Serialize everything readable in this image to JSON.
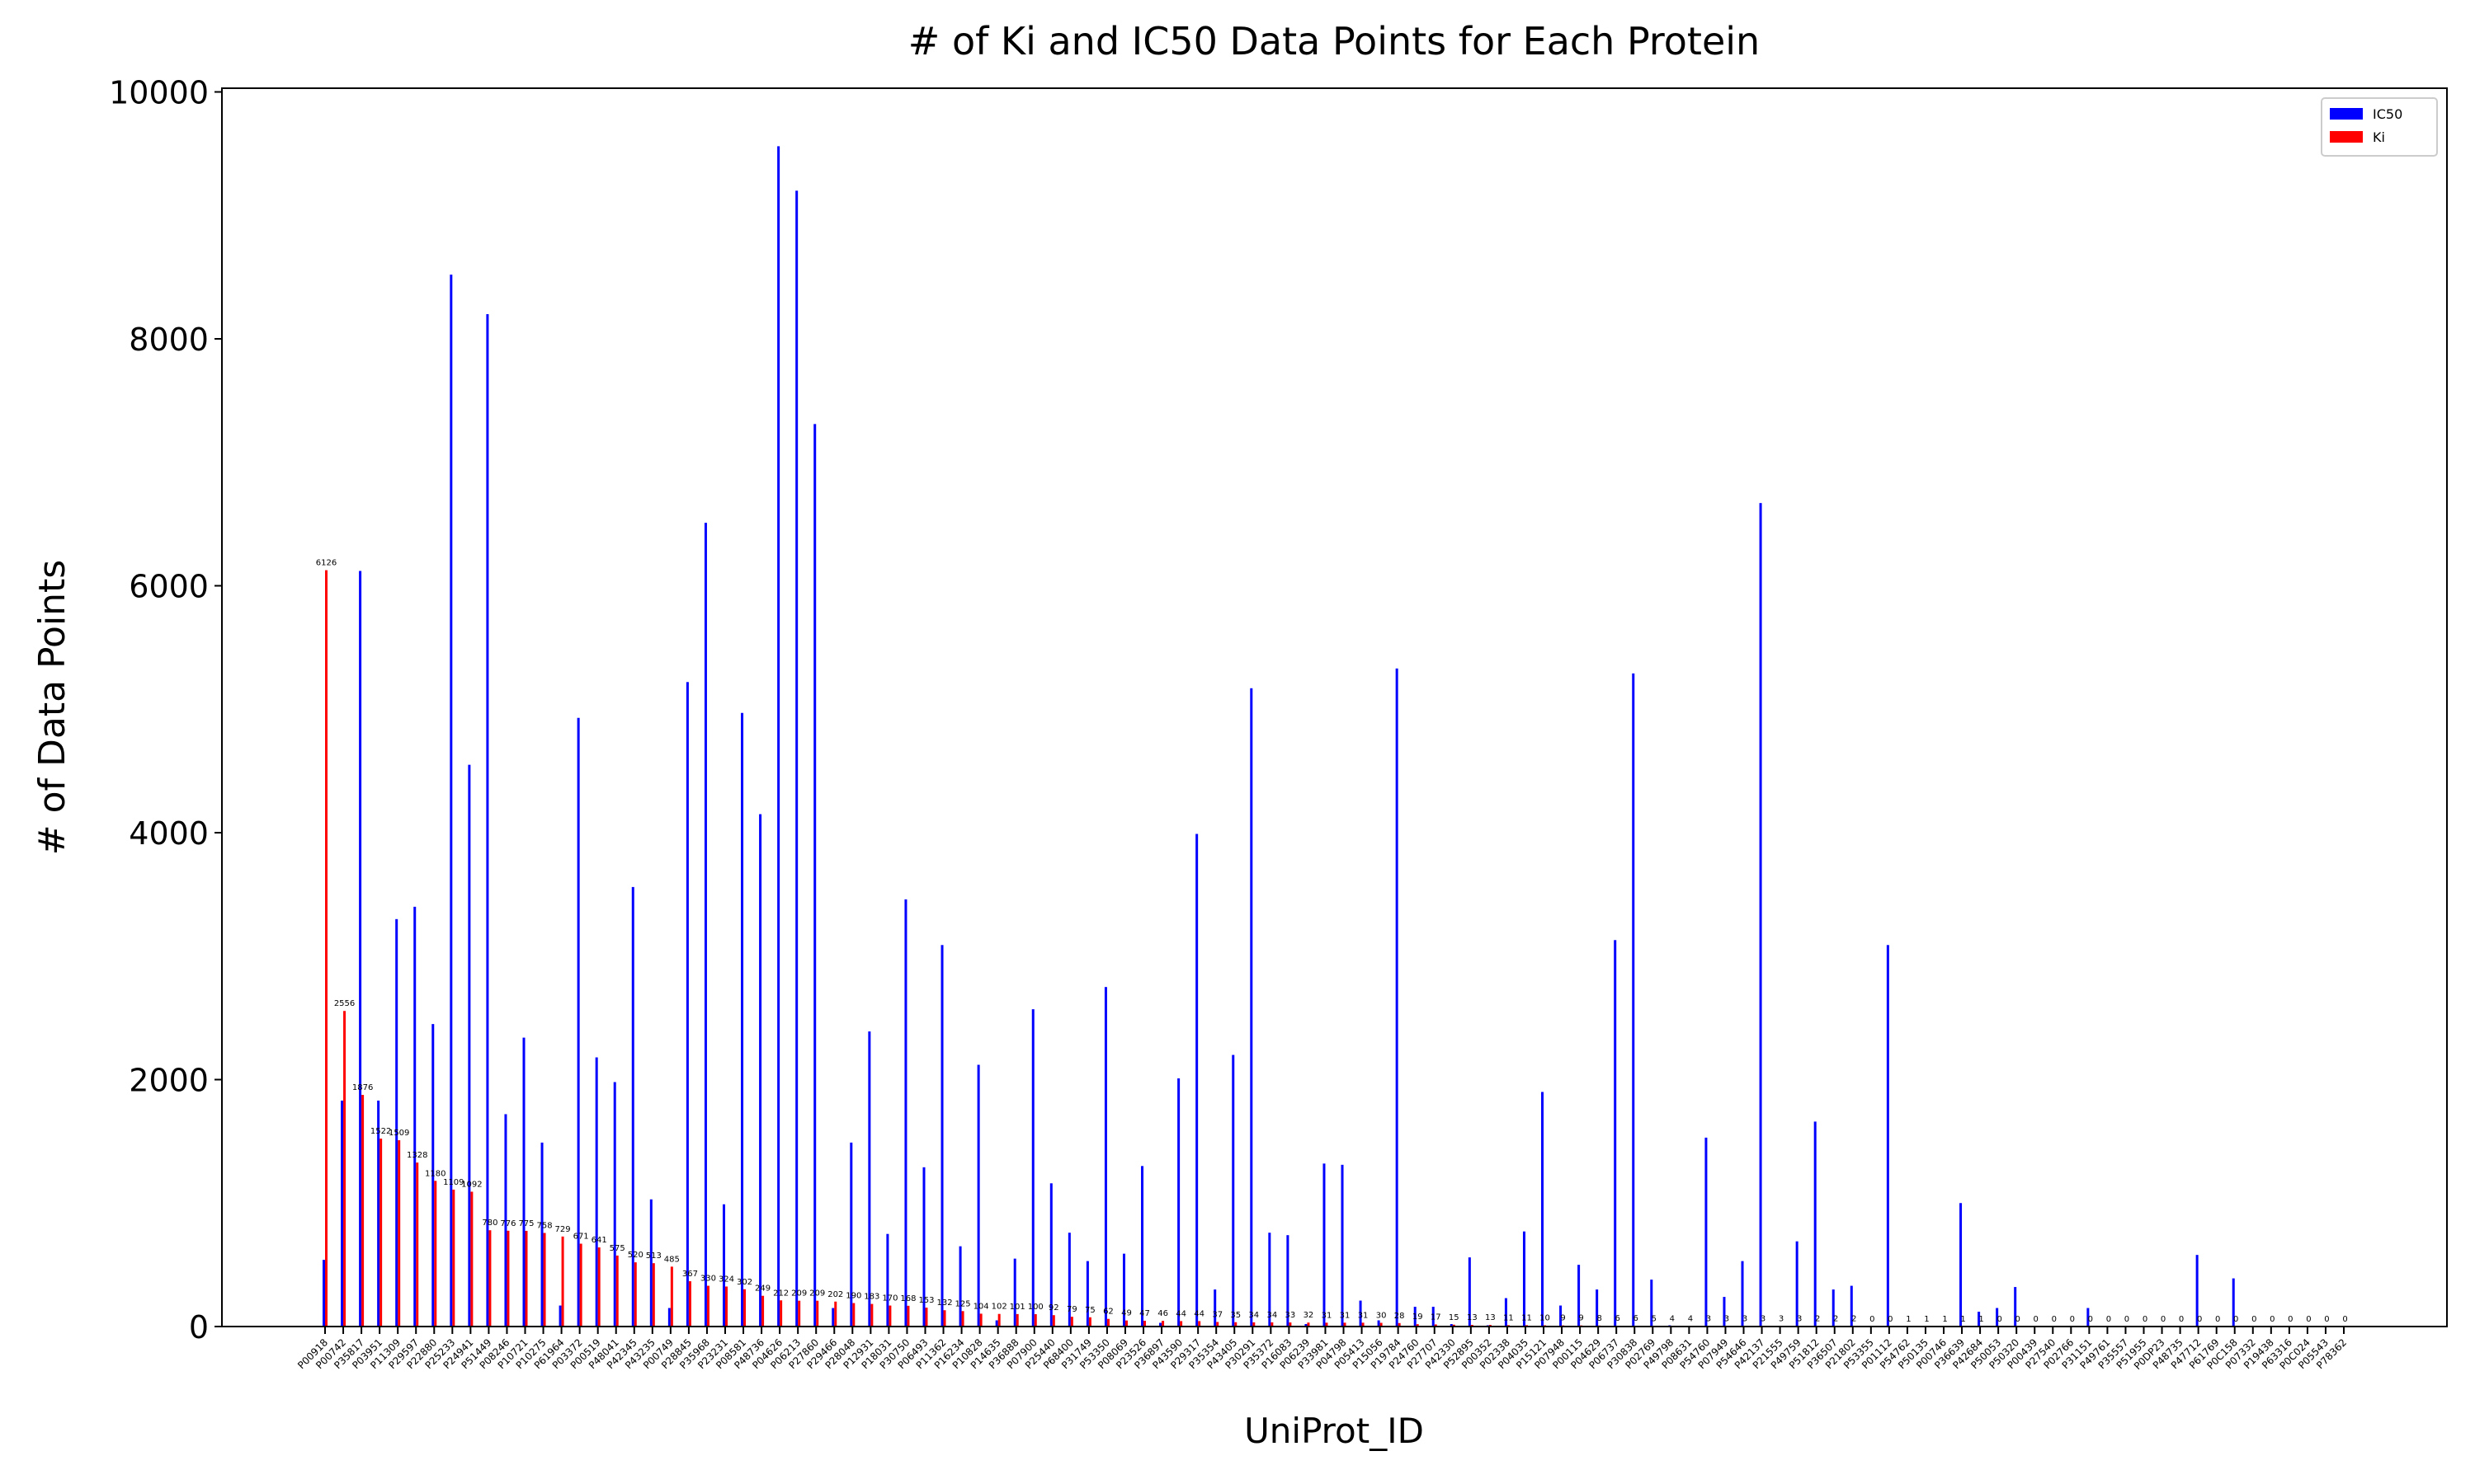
{
  "chart_data": {
    "type": "bar",
    "title": "# of Ki and IC50 Data Points for Each Protein",
    "xlabel": "UniProt_ID",
    "ylabel": "# of Data Points",
    "categories": [
      "P00918",
      "P00742",
      "P35817",
      "P03951",
      "P11309",
      "P29597",
      "P22880",
      "P25233",
      "P24941",
      "P51449",
      "P08246",
      "P10721",
      "P10275",
      "P61964",
      "P03372",
      "P00519",
      "P48041",
      "P42345",
      "P43235",
      "P00749",
      "P28845",
      "P35968",
      "P23231",
      "P08581",
      "P48736",
      "P04626",
      "P06213",
      "P27860",
      "P29466",
      "P28048",
      "P12931",
      "P18031",
      "P30750",
      "P06493",
      "P11362",
      "P16234",
      "P10828",
      "P14635",
      "P36888",
      "P07900",
      "P25440",
      "P68400",
      "P31749",
      "P53350",
      "P08069",
      "P23526",
      "P36897",
      "P43590",
      "P29317",
      "P35354",
      "P43405",
      "P30291",
      "P35372",
      "P16083",
      "P06239",
      "P33981",
      "P04798",
      "P05413",
      "P15056",
      "P19784",
      "P24760",
      "P27707",
      "P42330",
      "P52895",
      "P00352",
      "P02338",
      "P04035",
      "P15121",
      "P07948",
      "P00115",
      "P04629",
      "P06737",
      "P30838",
      "P02769",
      "P49798",
      "P08631",
      "P54760",
      "P07949",
      "P54646",
      "P42137",
      "P21555",
      "P49759",
      "P51812",
      "P36507",
      "P21802",
      "P53355",
      "P01112",
      "P54762",
      "P50135",
      "P00746",
      "P36639",
      "P42684",
      "P50053",
      "P50320",
      "P00439",
      "P27540",
      "P02766",
      "P31151",
      "P49761",
      "P35557",
      "P51955",
      "P0DP23",
      "P48735",
      "P47712",
      "P61769",
      "P0C158",
      "P07332",
      "P19438",
      "P63316",
      "P0C024",
      "P05543",
      "P78362"
    ],
    "series": [
      {
        "name": "IC50",
        "color": "#0000ff",
        "values": [
          540,
          1830,
          6120,
          1830,
          3300,
          3400,
          2450,
          8520,
          4550,
          8200,
          1720,
          2340,
          1490,
          170,
          4930,
          2180,
          1980,
          3560,
          1030,
          150,
          5220,
          6510,
          990,
          4970,
          4150,
          9560,
          9200,
          7310,
          150,
          1490,
          2390,
          750,
          3460,
          1290,
          3090,
          650,
          2120,
          50,
          550,
          2570,
          1160,
          760,
          530,
          2750,
          590,
          1300,
          30,
          2010,
          3990,
          300,
          2200,
          5170,
          760,
          740,
          20,
          1320,
          1310,
          210,
          50,
          5330,
          160,
          160,
          20,
          560,
          10,
          230,
          770,
          1900,
          170,
          500,
          300,
          3130,
          5290,
          380,
          10,
          0,
          1530,
          240,
          530,
          6670,
          0,
          690,
          1660,
          300,
          330,
          0,
          3090,
          0,
          0,
          0,
          1000,
          120,
          150,
          320,
          0,
          0,
          0,
          150,
          0,
          0,
          0,
          0,
          0,
          580,
          0,
          390,
          0,
          0,
          0,
          0,
          0,
          0
        ]
      },
      {
        "name": "Ki",
        "color": "#ff0000",
        "values": [
          6126,
          2556,
          1876,
          1522,
          1509,
          1328,
          1180,
          1109,
          1092,
          780,
          776,
          775,
          758,
          729,
          671,
          641,
          575,
          520,
          513,
          485,
          367,
          330,
          324,
          302,
          249,
          212,
          209,
          209,
          202,
          190,
          183,
          170,
          168,
          153,
          132,
          125,
          104,
          102,
          101,
          100,
          92,
          79,
          75,
          62,
          49,
          47,
          46,
          44,
          44,
          37,
          35,
          34,
          34,
          33,
          32,
          31,
          31,
          31,
          30,
          28,
          19,
          17,
          15,
          13,
          13,
          11,
          11,
          10,
          9,
          9,
          8,
          6,
          6,
          5,
          4,
          4,
          3,
          3,
          3,
          3,
          3,
          3,
          2,
          2,
          2,
          0,
          0,
          1,
          1,
          1,
          1,
          1,
          0,
          0,
          0,
          0,
          0,
          0,
          0,
          0,
          0,
          0,
          0,
          0,
          0,
          0,
          0,
          0,
          0,
          0,
          0,
          0
        ],
        "data_labels": true
      }
    ],
    "ylim": [
      0,
      10030
    ],
    "yticks": [
      0,
      2000,
      4000,
      6000,
      8000,
      10000
    ],
    "legend": "upper right"
  }
}
